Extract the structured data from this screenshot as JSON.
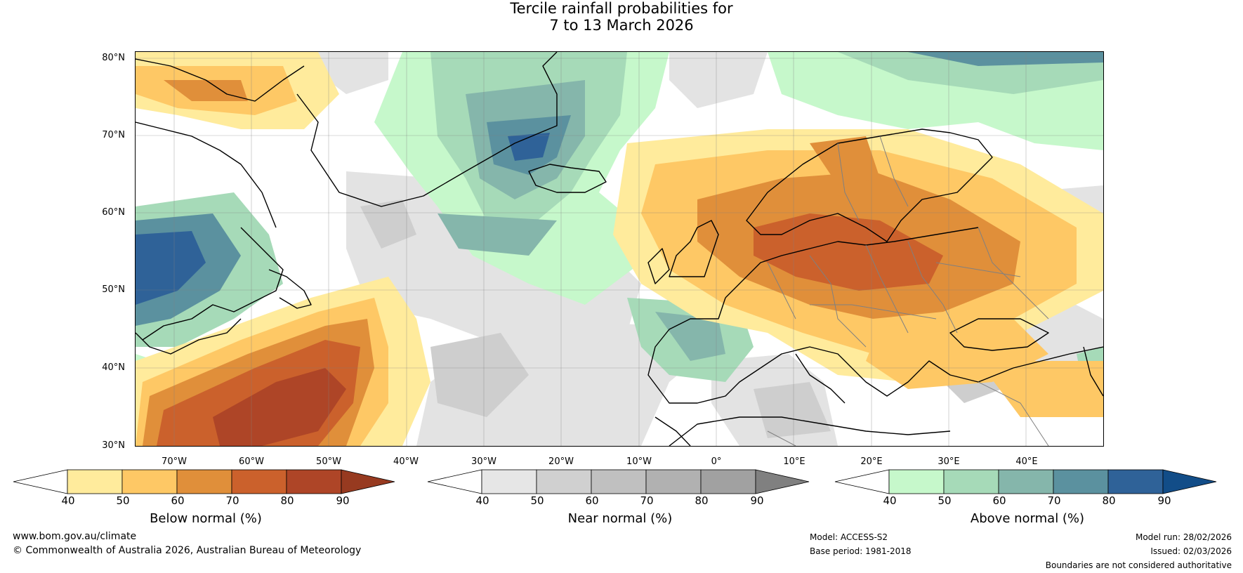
{
  "title": {
    "line1": "Tercile rainfall probabilities for",
    "line2": "7 to 13 March 2026"
  },
  "lat_labels": [
    "80°N",
    "70°N",
    "60°N",
    "50°N",
    "40°N",
    "30°N"
  ],
  "lon_labels": [
    "70°W",
    "60°W",
    "50°W",
    "40°W",
    "30°W",
    "20°W",
    "10°W",
    "0°",
    "10°E",
    "20°E",
    "30°E",
    "40°E"
  ],
  "colorbars": [
    {
      "label": "Below normal (%)",
      "ticks": [
        "40",
        "50",
        "60",
        "70",
        "80",
        "90"
      ],
      "colors": [
        "#ffffff",
        "#ffeb9c",
        "#fec865",
        "#e08f3a",
        "#cb612c",
        "#ae4527",
        "#973a20"
      ]
    },
    {
      "label": "Near normal (%)",
      "ticks": [
        "40",
        "50",
        "60",
        "70",
        "80",
        "90"
      ],
      "colors": [
        "#ffffff",
        "#e6e6e6",
        "#d0d0d0",
        "#c0c0c0",
        "#b1b1b1",
        "#a1a1a1",
        "#808080"
      ]
    },
    {
      "label": "Above normal (%)",
      "ticks": [
        "40",
        "50",
        "60",
        "70",
        "80",
        "90"
      ],
      "colors": [
        "#ffffff",
        "#c6f8cb",
        "#a6dab8",
        "#85b6ab",
        "#5b919f",
        "#2f6298",
        "#124d88"
      ]
    }
  ],
  "footer": {
    "website": "www.bom.gov.au/climate",
    "copyright": "© Commonwealth of Australia 2026, Australian Bureau of Meteorology",
    "model": "Model: ACCESS-S2",
    "base_period": "Base period: 1981-2018",
    "model_run": "Model run: 28/02/2026",
    "issued": "Issued: 02/03/2026",
    "disclaimer": "Boundaries are not considered authoritative"
  }
}
